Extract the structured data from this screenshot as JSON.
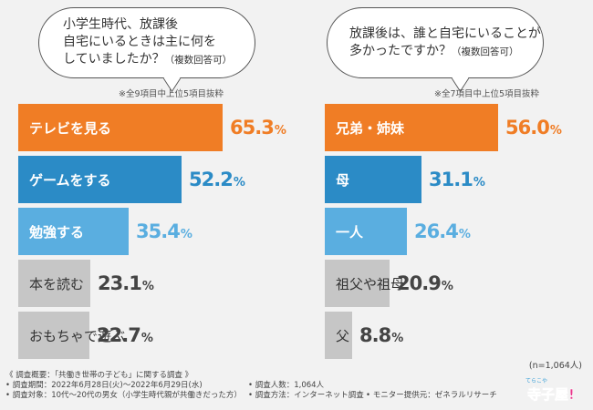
{
  "chart_data": [
    {
      "type": "bar",
      "orientation": "horizontal",
      "title_lines": [
        "小学生時代、放課後",
        "自宅にいるときは主に何を",
        "していましたか？"
      ],
      "title_suffix": "（複数回答可）",
      "note": "※全9項目中上位5項目抜粋",
      "categories": [
        "テレビを見る",
        "ゲームをする",
        "勉強する",
        "本を読む",
        "おもちゃで遊ぶ"
      ],
      "values": [
        65.3,
        52.2,
        35.4,
        23.1,
        22.7
      ],
      "value_labels": [
        "65.3",
        "52.2",
        "35.4",
        "23.1",
        "22.7"
      ],
      "unit": "%",
      "colors": [
        "#f07d25",
        "#2b8bc6",
        "#5aaee0",
        "#c6c6c6",
        "#c6c6c6"
      ],
      "value_colors": [
        "#f07d25",
        "#2b8bc6",
        "#5aaee0",
        "#444444",
        "#444444"
      ],
      "xlim": [
        0,
        65.3
      ]
    },
    {
      "type": "bar",
      "orientation": "horizontal",
      "title_lines": [
        "放課後は、誰と自宅にいることが",
        "多かったですか？"
      ],
      "title_suffix": "（複数回答可）",
      "note": "※全7項目中上位5項目抜粋",
      "categories": [
        "兄弟・姉妹",
        "母",
        "一人",
        "祖父や祖母",
        "父"
      ],
      "values": [
        56.0,
        31.1,
        26.4,
        20.9,
        8.8
      ],
      "value_labels": [
        "56.0",
        "31.1",
        "26.4",
        "20.9",
        "8.8"
      ],
      "unit": "%",
      "colors": [
        "#f07d25",
        "#2b8bc6",
        "#5aaee0",
        "#c6c6c6",
        "#c6c6c6"
      ],
      "value_colors": [
        "#f07d25",
        "#2b8bc6",
        "#5aaee0",
        "#444444",
        "#444444"
      ],
      "xlim": [
        0,
        56.0
      ]
    }
  ],
  "sample_size": "(n=1,064人)",
  "footer": {
    "heading": "《 調査概要：「共働き世帯の子ども」に関する調査 》",
    "period": "• 調査期間：2022年6月28日(火)～2022年6月29日(水)",
    "respondents": "• 調査人数：1,064人",
    "target": "• 調査対象：10代～20代の男女（小学生時代親が共働きだった方）",
    "method": "• 調査方法：インターネット調査",
    "provider": "• モニター提供元：ゼネラルリサーチ"
  },
  "logo": {
    "small_text": "てらこや",
    "main_text": "寺子屋!",
    "colors": [
      "#e8338a",
      "#3aa0d8"
    ]
  }
}
